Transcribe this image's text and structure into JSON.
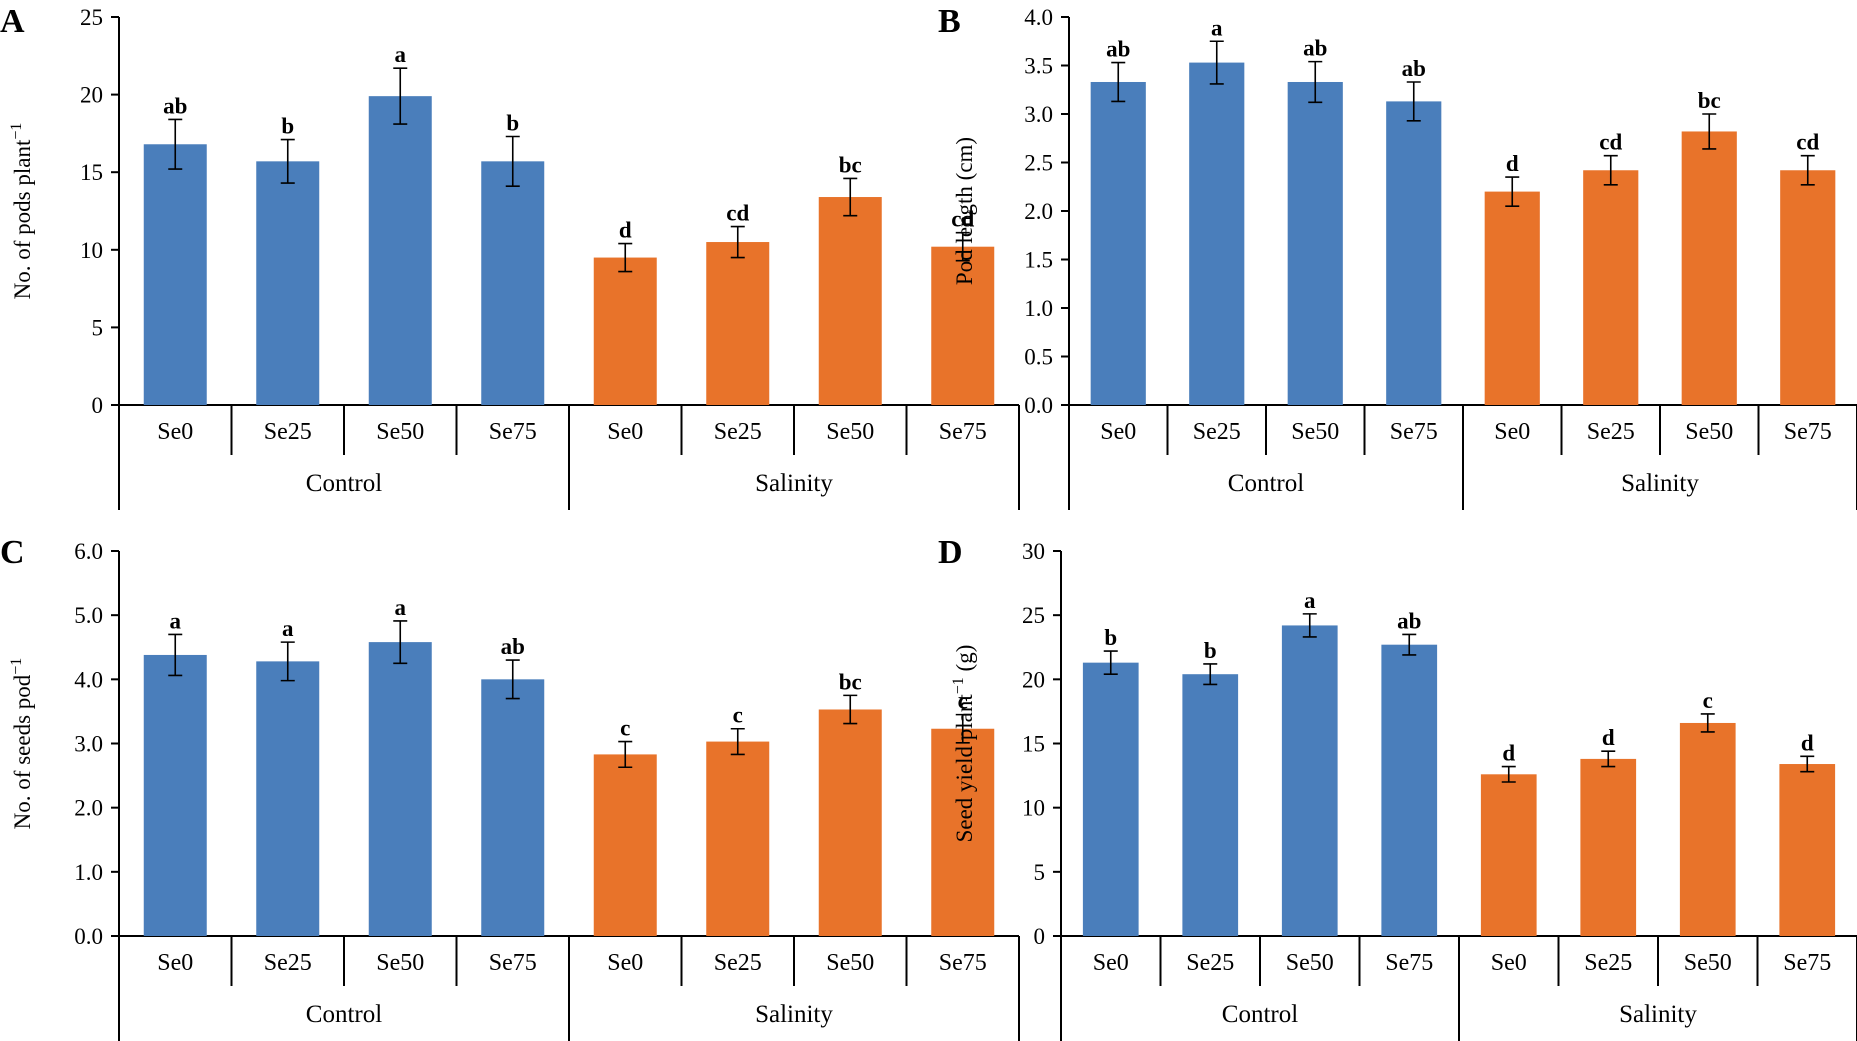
{
  "colors": {
    "control": "#4a7ebb",
    "salinity": "#e8732a"
  },
  "chart_data": [
    {
      "type": "bar",
      "panel": "A",
      "ylabel_base": "No. of pods plant",
      "ylabel_sup": "−1",
      "ylabel_tail": "",
      "ylim": [
        0,
        25
      ],
      "ticks": [
        0,
        5,
        10,
        15,
        20,
        25
      ],
      "tick_decimals": 0,
      "categories": [
        "Se0",
        "Se25",
        "Se50",
        "Se75",
        "Se0",
        "Se25",
        "Se50",
        "Se75"
      ],
      "groups": [
        {
          "name": "Control",
          "span": [
            0,
            3
          ]
        },
        {
          "name": "Salinity",
          "span": [
            4,
            7
          ]
        }
      ],
      "values": [
        16.8,
        15.7,
        19.9,
        15.7,
        9.5,
        10.5,
        13.4,
        10.2
      ],
      "errors": [
        1.6,
        1.4,
        1.8,
        1.6,
        0.9,
        1.0,
        1.2,
        0.9
      ],
      "letters": [
        "ab",
        "b",
        "a",
        "b",
        "d",
        "cd",
        "bc",
        "cd"
      ]
    },
    {
      "type": "bar",
      "panel": "B",
      "ylabel_base": "Pod length (cm)",
      "ylabel_sup": "",
      "ylabel_tail": "",
      "ylim": [
        0,
        4.0
      ],
      "ticks": [
        0,
        0.5,
        1.0,
        1.5,
        2.0,
        2.5,
        3.0,
        3.5,
        4.0
      ],
      "tick_decimals": 1,
      "categories": [
        "Se0",
        "Se25",
        "Se50",
        "Se75",
        "Se0",
        "Se25",
        "Se50",
        "Se75"
      ],
      "groups": [
        {
          "name": "Control",
          "span": [
            0,
            3
          ]
        },
        {
          "name": "Salinity",
          "span": [
            4,
            7
          ]
        }
      ],
      "values": [
        3.33,
        3.53,
        3.33,
        3.13,
        2.2,
        2.42,
        2.82,
        2.42
      ],
      "errors": [
        0.2,
        0.22,
        0.21,
        0.2,
        0.15,
        0.15,
        0.18,
        0.15
      ],
      "letters": [
        "ab",
        "a",
        "ab",
        "ab",
        "d",
        "cd",
        "bc",
        "cd"
      ]
    },
    {
      "type": "bar",
      "panel": "C",
      "ylabel_base": "No. of seeds pod",
      "ylabel_sup": "−1",
      "ylabel_tail": "",
      "ylim": [
        0,
        6.0
      ],
      "ticks": [
        0,
        1.0,
        2.0,
        3.0,
        4.0,
        5.0,
        6.0
      ],
      "tick_decimals": 1,
      "categories": [
        "Se0",
        "Se25",
        "Se50",
        "Se75",
        "Se0",
        "Se25",
        "Se50",
        "Se75"
      ],
      "groups": [
        {
          "name": "Control",
          "span": [
            0,
            3
          ]
        },
        {
          "name": "Salinity",
          "span": [
            4,
            7
          ]
        }
      ],
      "values": [
        4.38,
        4.28,
        4.58,
        4.0,
        2.83,
        3.03,
        3.53,
        3.23
      ],
      "errors": [
        0.32,
        0.3,
        0.33,
        0.3,
        0.2,
        0.2,
        0.22,
        0.22
      ],
      "letters": [
        "a",
        "a",
        "a",
        "ab",
        "c",
        "c",
        "bc",
        "c"
      ]
    },
    {
      "type": "bar",
      "panel": "D",
      "ylabel_base": "Seed yield plant",
      "ylabel_sup": "−1",
      "ylabel_tail": " (g)",
      "ylim": [
        0,
        30
      ],
      "ticks": [
        0,
        5,
        10,
        15,
        20,
        25,
        30
      ],
      "tick_decimals": 0,
      "categories": [
        "Se0",
        "Se25",
        "Se50",
        "Se75",
        "Se0",
        "Se25",
        "Se50",
        "Se75"
      ],
      "groups": [
        {
          "name": "Control",
          "span": [
            0,
            3
          ]
        },
        {
          "name": "Salinity",
          "span": [
            4,
            7
          ]
        }
      ],
      "values": [
        21.3,
        20.4,
        24.2,
        22.7,
        12.6,
        13.8,
        16.6,
        13.4
      ],
      "errors": [
        0.9,
        0.8,
        0.9,
        0.8,
        0.6,
        0.6,
        0.7,
        0.6
      ],
      "letters": [
        "b",
        "b",
        "a",
        "ab",
        "d",
        "d",
        "c",
        "d"
      ]
    }
  ]
}
